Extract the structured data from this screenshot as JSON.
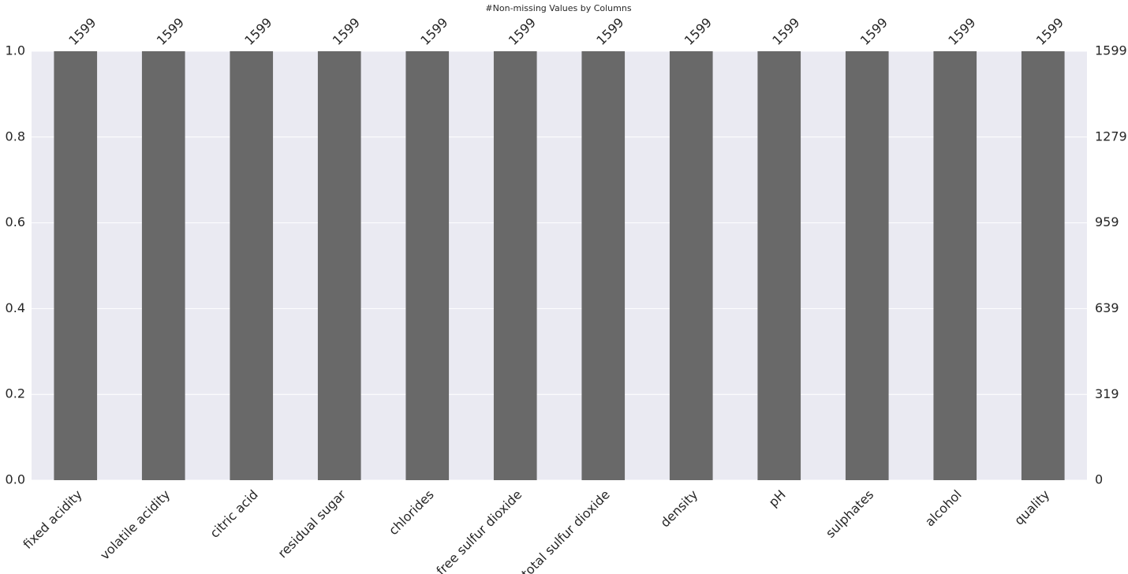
{
  "chart_data": {
    "type": "bar",
    "title": "#Non-missing Values by Columns",
    "categories": [
      "fixed acidity",
      "volatile acidity",
      "citric acid",
      "residual sugar",
      "chlorides",
      "free sulfur dioxide",
      "total sulfur dioxide",
      "density",
      "pH",
      "sulphates",
      "alcohol",
      "quality"
    ],
    "series": [
      {
        "color": "#696969",
        "axis": "y2",
        "values": [
          1599,
          1599,
          1599,
          1599,
          1599,
          1599,
          1599,
          1599,
          1599,
          1599,
          1599,
          1599
        ]
      }
    ],
    "ylim": [
      0,
      1
    ],
    "yticks": [
      {
        "value": 0,
        "label": "0.0"
      },
      0.2,
      0.4,
      0.6,
      0.8,
      {
        "value": 1,
        "label": "1.0"
      }
    ],
    "y2lim": [
      0,
      1599
    ],
    "y2ticks": [
      0,
      319,
      639,
      959,
      1279,
      1599
    ],
    "grid": true,
    "background": "#eaeaf2"
  }
}
